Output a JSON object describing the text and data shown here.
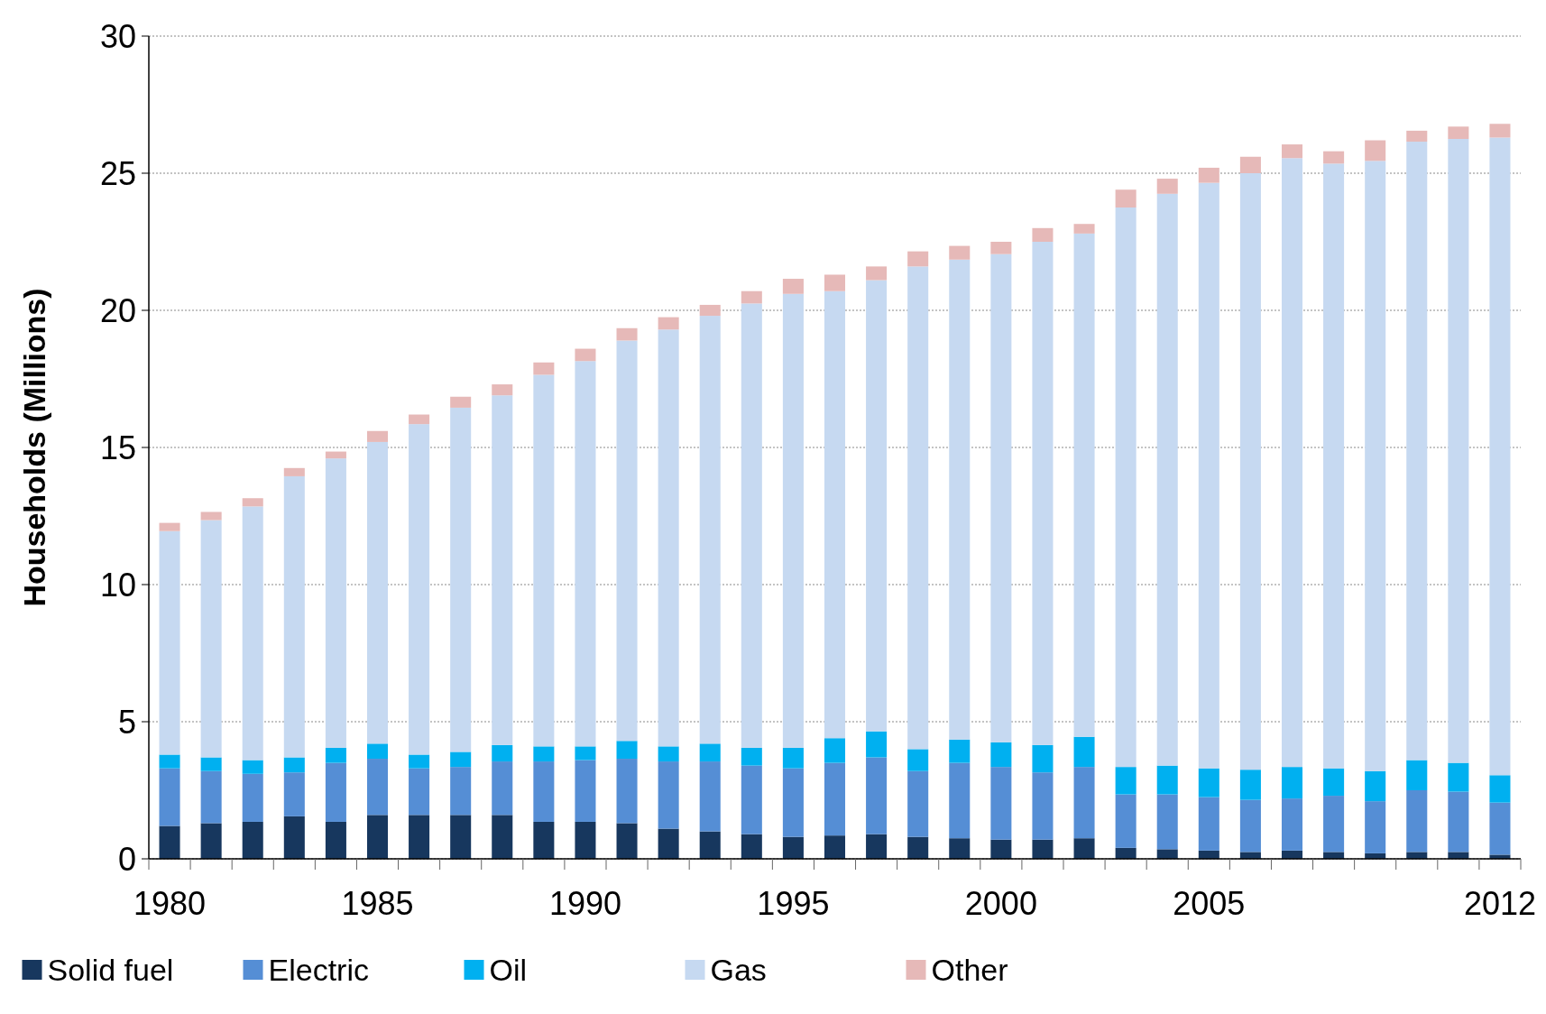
{
  "chart_data": {
    "type": "bar",
    "stacked": true,
    "ylabel": "Households (Millions)",
    "categories": [
      "1980",
      null,
      null,
      null,
      null,
      "1985",
      null,
      null,
      null,
      null,
      "1990",
      null,
      null,
      null,
      null,
      "1995",
      null,
      null,
      null,
      null,
      "2000",
      null,
      null,
      null,
      null,
      "2005",
      null,
      null,
      null,
      null,
      null,
      null,
      "2012"
    ],
    "series": [
      {
        "name": "Solid fuel",
        "color": "#17375e",
        "values": [
          1.2,
          1.3,
          1.35,
          1.55,
          1.35,
          1.6,
          1.6,
          1.6,
          1.6,
          1.35,
          1.35,
          1.3,
          1.1,
          1.0,
          0.9,
          0.8,
          0.85,
          0.9,
          0.8,
          0.75,
          0.7,
          0.7,
          0.75,
          0.4,
          0.35,
          0.3,
          0.25,
          0.3,
          0.25,
          0.2,
          0.25,
          0.25,
          0.15
        ]
      },
      {
        "name": "Electric",
        "color": "#558ed5",
        "values": [
          2.1,
          1.9,
          1.75,
          1.6,
          2.15,
          2.05,
          1.7,
          1.75,
          1.95,
          2.2,
          2.25,
          2.35,
          2.45,
          2.55,
          2.5,
          2.5,
          2.65,
          2.8,
          2.4,
          2.75,
          2.65,
          2.45,
          2.6,
          1.95,
          2.0,
          1.95,
          1.9,
          1.9,
          2.05,
          1.9,
          2.25,
          2.2,
          1.9
        ]
      },
      {
        "name": "Oil",
        "color": "#00b0f0",
        "values": [
          0.5,
          0.5,
          0.5,
          0.55,
          0.55,
          0.55,
          0.5,
          0.55,
          0.6,
          0.55,
          0.5,
          0.65,
          0.55,
          0.65,
          0.65,
          0.75,
          0.9,
          0.95,
          0.8,
          0.85,
          0.9,
          1.0,
          1.1,
          1.0,
          1.05,
          1.05,
          1.1,
          1.15,
          1.0,
          1.1,
          1.1,
          1.05,
          1.0
        ]
      },
      {
        "name": "Gas",
        "color": "#c6d9f1",
        "values": [
          8.15,
          8.65,
          9.25,
          10.25,
          10.55,
          11.0,
          12.05,
          12.55,
          12.75,
          13.55,
          14.05,
          14.6,
          15.2,
          15.6,
          16.2,
          16.55,
          16.3,
          16.45,
          17.6,
          17.5,
          17.8,
          18.35,
          18.35,
          20.4,
          20.85,
          21.35,
          21.75,
          22.2,
          22.05,
          22.25,
          22.55,
          22.75,
          23.25
        ]
      },
      {
        "name": "Other",
        "color": "#e6b9b8",
        "values": [
          0.3,
          0.3,
          0.3,
          0.3,
          0.25,
          0.4,
          0.35,
          0.4,
          0.4,
          0.45,
          0.45,
          0.45,
          0.45,
          0.4,
          0.45,
          0.55,
          0.6,
          0.5,
          0.55,
          0.5,
          0.45,
          0.5,
          0.35,
          0.65,
          0.55,
          0.55,
          0.6,
          0.5,
          0.45,
          0.75,
          0.4,
          0.45,
          0.5
        ]
      }
    ],
    "ylim": [
      0,
      30
    ],
    "yticks": [
      0,
      5,
      10,
      15,
      20,
      25,
      30
    ],
    "grid": "y",
    "legend": "bottom"
  }
}
